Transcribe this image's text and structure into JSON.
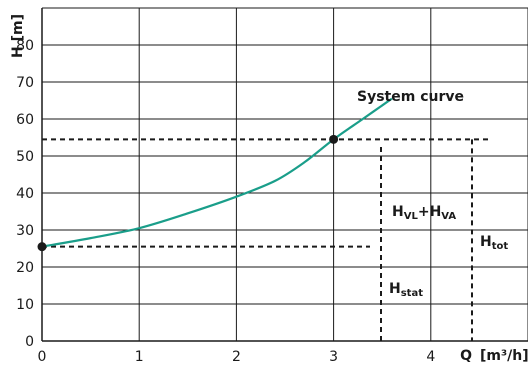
{
  "chart_data": {
    "type": "line",
    "title": "",
    "xlabel": "Q",
    "xunit": "[m³/h]",
    "ylabel": "H [m]",
    "xlim": [
      0,
      5
    ],
    "ylim": [
      0,
      90
    ],
    "xticks": [
      "0",
      "1",
      "2",
      "3",
      "4"
    ],
    "yticks": [
      "0",
      "10",
      "20",
      "30",
      "40",
      "50",
      "60",
      "70",
      "80"
    ],
    "grid": true,
    "series": [
      {
        "name": "System curve",
        "color": "#1a9e8a",
        "x": [
          0,
          0.5,
          1.0,
          1.5,
          2.0,
          2.4,
          2.7,
          3.0,
          3.3,
          3.6
        ],
        "y": [
          25.5,
          27.8,
          30.5,
          34.5,
          39.0,
          43.3,
          48.3,
          54.5,
          60.0,
          65.5
        ]
      }
    ],
    "points": [
      {
        "x": 0,
        "y": 25.5
      },
      {
        "x": 3.0,
        "y": 54.5
      }
    ],
    "annotations": {
      "hvl_main": "H",
      "hvl_sub1": "VL",
      "hvl_plus": "+H",
      "hvl_sub2": "VA",
      "htot_main": "H",
      "htot_sub": "tot",
      "hstat_main": "H",
      "hstat_sub": "stat"
    },
    "reference_lines": {
      "upper_y": 54.5,
      "lower_y": 25.5,
      "stat_x": 3.45,
      "tot_x": 4.4
    }
  }
}
